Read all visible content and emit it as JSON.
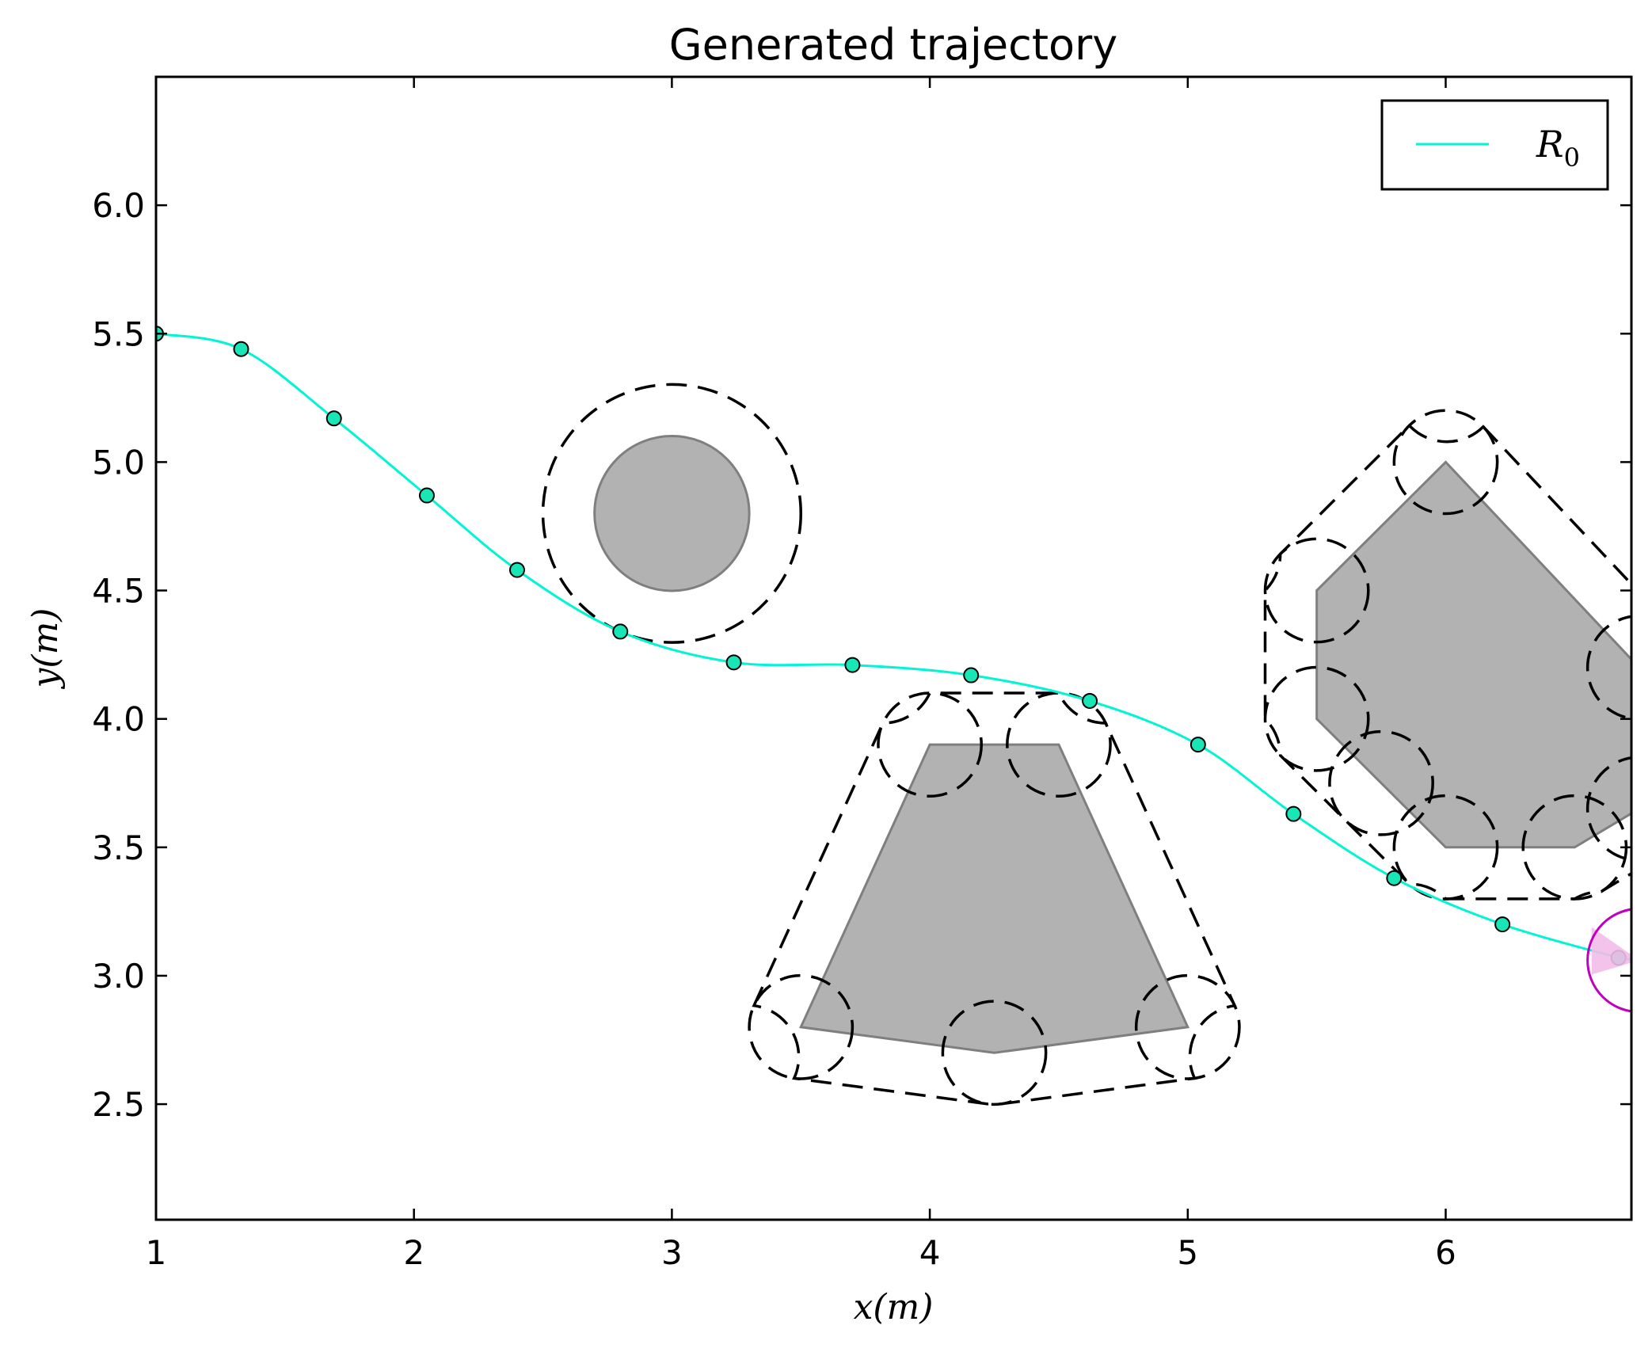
{
  "chart_data": {
    "type": "line",
    "title": "Generated trajectory",
    "xlabel": "x(m)",
    "ylabel": "y(m)",
    "xlim": [
      1,
      6.72
    ],
    "ylim": [
      2.05,
      6.5
    ],
    "xticks": [
      1,
      2,
      3,
      4,
      5,
      6
    ],
    "yticks": [
      2.5,
      3.0,
      3.5,
      4.0,
      4.5,
      5.0,
      5.5,
      6.0
    ],
    "xtick_labels": [
      "1",
      "2",
      "3",
      "4",
      "5",
      "6"
    ],
    "ytick_labels": [
      "2.5",
      "3.0",
      "3.5",
      "4.0",
      "4.5",
      "5.0",
      "5.5",
      "6.0"
    ],
    "grid": false,
    "legend_position": "top-right",
    "series": [
      {
        "name": "R",
        "name_subscript": "0",
        "color": "#00f5d4",
        "marker_face": "#19e6b6",
        "x": [
          1.0,
          1.33,
          1.69,
          2.05,
          2.4,
          2.8,
          3.24,
          3.7,
          4.16,
          4.62,
          5.04,
          5.41,
          5.8,
          6.22,
          6.67
        ],
        "y": [
          5.5,
          5.44,
          5.17,
          4.87,
          4.58,
          4.34,
          4.22,
          4.21,
          4.17,
          4.07,
          3.9,
          3.63,
          3.38,
          3.2,
          3.07
        ]
      }
    ],
    "obstacles": [
      {
        "shape": "circle",
        "center": [
          3.0,
          4.8
        ],
        "radius": 0.3,
        "safety_radius": 0.5
      },
      {
        "shape": "polygon",
        "vertices": [
          [
            3.5,
            2.8
          ],
          [
            4.0,
            3.9
          ],
          [
            4.5,
            3.9
          ],
          [
            5.0,
            2.8
          ],
          [
            4.25,
            2.7
          ]
        ],
        "safety_margin": 0.2
      },
      {
        "shape": "polygon",
        "vertices": [
          [
            6.0,
            5.0
          ],
          [
            6.75,
            4.2
          ],
          [
            6.75,
            3.65
          ],
          [
            6.5,
            3.5
          ],
          [
            6.0,
            3.5
          ],
          [
            5.75,
            3.75
          ],
          [
            5.5,
            4.0
          ],
          [
            5.5,
            4.5
          ]
        ],
        "safety_margin": 0.2
      }
    ],
    "robot": {
      "center": [
        6.75,
        3.06
      ],
      "radius": 0.2,
      "color": "#bf00bf",
      "fill": "#f2bde9"
    },
    "colors": {
      "obstacle_fill": "#b2b2b2",
      "obstacle_edge": "#7f7f7f",
      "margin_line": "#000000"
    }
  }
}
